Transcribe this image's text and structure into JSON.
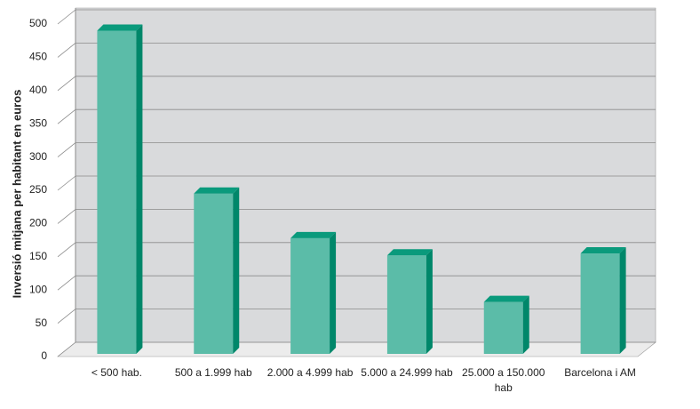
{
  "chart_data": {
    "type": "bar",
    "y_label": "Inversió mitjana per habitant en euros",
    "categories": [
      "< 500 hab.",
      "500 a 1.999 hab",
      "2.000 a 4.999 hab",
      "5.000 a 24.999 hab",
      "25.000 a 150.000 hab",
      "Barcelona i AM"
    ],
    "values": [
      490,
      245,
      178,
      152,
      82,
      155
    ],
    "color": "#5bbca8",
    "ylim": [
      0,
      500
    ],
    "yticks": [
      0,
      50,
      100,
      150,
      200,
      250,
      300,
      350,
      400,
      450,
      500
    ],
    "grid": true
  }
}
